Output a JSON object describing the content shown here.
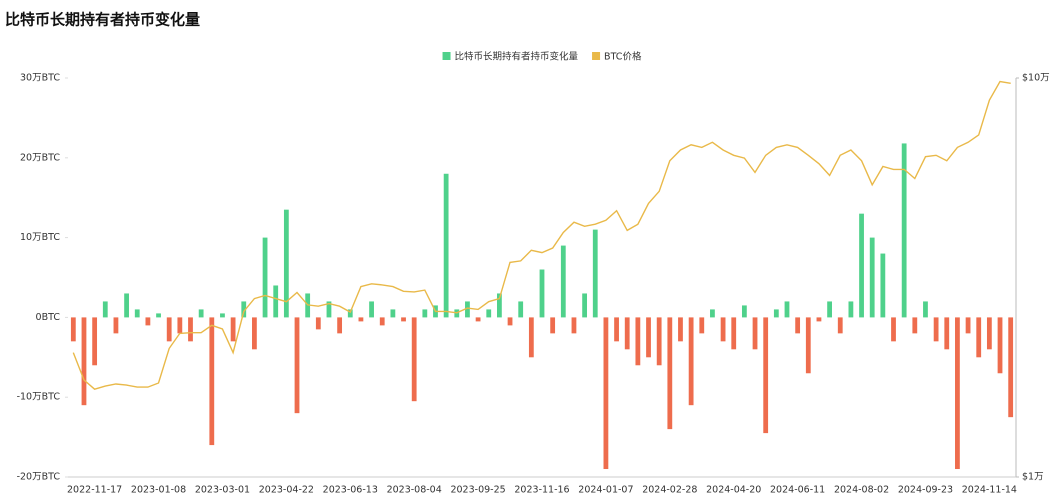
{
  "chart_data": {
    "type": "bar",
    "title": "比特币长期持有者持币变化量",
    "categories": [
      null,
      null,
      "2022-11-17",
      null,
      null,
      null,
      null,
      null,
      "2023-01-08",
      null,
      null,
      null,
      null,
      null,
      "2023-03-01",
      null,
      null,
      null,
      null,
      null,
      "2023-04-22",
      null,
      null,
      null,
      null,
      null,
      "2023-06-13",
      null,
      null,
      null,
      null,
      null,
      "2023-08-04",
      null,
      null,
      null,
      null,
      null,
      "2023-09-25",
      null,
      null,
      null,
      null,
      null,
      "2023-11-16",
      null,
      null,
      null,
      null,
      null,
      "2024-01-07",
      null,
      null,
      null,
      null,
      null,
      "2024-02-28",
      null,
      null,
      null,
      null,
      null,
      "2024-04-20",
      null,
      null,
      null,
      null,
      null,
      "2024-06-11",
      null,
      null,
      null,
      null,
      null,
      "2024-08-02",
      null,
      null,
      null,
      null,
      null,
      "2024-09-23",
      null,
      null,
      null,
      null,
      null,
      "2024-11-14",
      null,
      null
    ],
    "series": [
      {
        "name": "比特币长期持有者持币变化量",
        "type": "bar",
        "color": "#4fd18b",
        "negative_color": "#ee6c4d",
        "values": [
          -30000,
          -110000,
          -60000,
          20000,
          -20000,
          30000,
          10000,
          -10000,
          5000,
          -30000,
          -20000,
          -30000,
          10000,
          -160000,
          5000,
          -30000,
          20000,
          -40000,
          100000,
          40000,
          135000,
          -120000,
          30000,
          -15000,
          20000,
          -20000,
          10000,
          -5000,
          20000,
          -10000,
          10000,
          -5000,
          -105000,
          10000,
          15000,
          180000,
          10000,
          20000,
          -5000,
          10000,
          30000,
          -10000,
          20000,
          -50000,
          60000,
          -20000,
          90000,
          -20000,
          30000,
          110000,
          -190000,
          -30000,
          -40000,
          -60000,
          -50000,
          -60000,
          -140000,
          -30000,
          -110000,
          -20000,
          10000,
          -30000,
          -40000,
          15000,
          -40000,
          -145000,
          10000,
          20000,
          -20000,
          -70000,
          -5000,
          20000,
          -20000,
          20000,
          130000,
          100000,
          80000,
          -30000,
          218000,
          -20000,
          20000,
          -30000,
          -40000,
          -190000,
          -20000,
          -50000,
          -40000,
          -70000,
          -125000
        ]
      },
      {
        "name": "BTC价格",
        "type": "line",
        "axis": "y2",
        "color": "#e9b949",
        "values": [
          20500,
          17500,
          16600,
          16900,
          17100,
          17000,
          16800,
          16800,
          17200,
          21000,
          22900,
          23000,
          23000,
          24000,
          23500,
          20500,
          26000,
          28000,
          28500,
          28000,
          27500,
          29000,
          27000,
          26800,
          27200,
          26800,
          25900,
          30000,
          30500,
          30300,
          30000,
          29200,
          29100,
          29400,
          26000,
          26000,
          25800,
          26500,
          26300,
          27500,
          28000,
          34500,
          34800,
          37000,
          36500,
          37500,
          41000,
          43500,
          42500,
          43000,
          44000,
          46500,
          41500,
          43000,
          48500,
          52000,
          62000,
          66000,
          68000,
          67000,
          69000,
          66000,
          64000,
          63000,
          58000,
          64000,
          67000,
          68000,
          67000,
          64000,
          61000,
          57000,
          64000,
          66000,
          62000,
          54000,
          60000,
          59000,
          59000,
          56000,
          63500,
          64000,
          62000,
          67000,
          69000,
          72000,
          88000,
          98000,
          97000
        ]
      }
    ],
    "ylim": [
      -200000,
      300000
    ],
    "yticks": [
      {
        "value": -200000,
        "label": "-20万BTC"
      },
      {
        "value": -100000,
        "label": "-10万BTC"
      },
      {
        "value": 0,
        "label": "0BTC"
      },
      {
        "value": 100000,
        "label": "10万BTC"
      },
      {
        "value": 200000,
        "label": "20万BTC"
      },
      {
        "value": 300000,
        "label": "30万BTC"
      }
    ],
    "y2lim": [
      10000,
      100000
    ],
    "y2_log": true,
    "y2ticks": [
      {
        "value": 10000,
        "label": "$1万"
      },
      {
        "value": 100000,
        "label": "$10万"
      }
    ],
    "legend": "top"
  }
}
